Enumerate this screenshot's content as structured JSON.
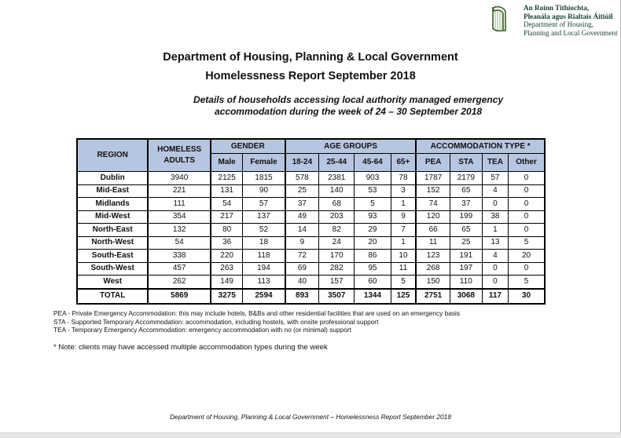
{
  "logo": {
    "line1": "An Roinn Tithíochta,",
    "line2": "Pleanála agus Rialtais Áitiúil",
    "line3": "Department of Housing,",
    "line4": "Planning and Local Government"
  },
  "title": {
    "line1": "Department of Housing, Planning & Local Government",
    "line2": "Homelessness Report September 2018"
  },
  "subtitle": {
    "line1": "Details of households accessing local authority managed emergency",
    "line2": "accommodation during the week of 24 – 30 September 2018"
  },
  "table": {
    "headers": {
      "region": "REGION",
      "homeless_adults": "HOMELESS ADULTS",
      "gender": "GENDER",
      "age_groups": "AGE GROUPS",
      "accommodation_type": "ACCOMMODATION TYPE *",
      "male": "Male",
      "female": "Female",
      "age_18_24": "18-24",
      "age_25_44": "25-44",
      "age_45_64": "45-64",
      "age_65": "65+",
      "pea": "PEA",
      "sta": "STA",
      "tea": "TEA",
      "other": "Other"
    },
    "rows": [
      [
        "Dublin",
        "3940",
        "2125",
        "1815",
        "578",
        "2381",
        "903",
        "78",
        "1787",
        "2179",
        "57",
        "0"
      ],
      [
        "Mid-East",
        "221",
        "131",
        "90",
        "25",
        "140",
        "53",
        "3",
        "152",
        "65",
        "4",
        "0"
      ],
      [
        "Midlands",
        "111",
        "54",
        "57",
        "37",
        "68",
        "5",
        "1",
        "74",
        "37",
        "0",
        "0"
      ],
      [
        "Mid-West",
        "354",
        "217",
        "137",
        "49",
        "203",
        "93",
        "9",
        "120",
        "199",
        "38",
        "0"
      ],
      [
        "North-East",
        "132",
        "80",
        "52",
        "14",
        "82",
        "29",
        "7",
        "66",
        "65",
        "1",
        "0"
      ],
      [
        "North-West",
        "54",
        "36",
        "18",
        "9",
        "24",
        "20",
        "1",
        "11",
        "25",
        "13",
        "5"
      ],
      [
        "South-East",
        "338",
        "220",
        "118",
        "72",
        "170",
        "86",
        "10",
        "123",
        "191",
        "4",
        "20"
      ],
      [
        "South-West",
        "457",
        "263",
        "194",
        "69",
        "282",
        "95",
        "11",
        "268",
        "197",
        "0",
        "0"
      ],
      [
        "West",
        "262",
        "149",
        "113",
        "40",
        "157",
        "60",
        "5",
        "150",
        "110",
        "0",
        "5"
      ]
    ],
    "total": [
      "TOTAL",
      "5869",
      "3275",
      "2594",
      "893",
      "3507",
      "1344",
      "125",
      "2751",
      "3068",
      "117",
      "30"
    ]
  },
  "notes": {
    "pea": "PEA - Private Emergency Accommodation: this may include hotels, B&Bs and other residential facilities that are used on an emergency basis",
    "sta": "STA - Supported Temporary Accommodation: accommodation, including hostels, with onsite professional support",
    "tea": "TEA - Temporary Emergency Accommodation: emergency accommodation with no (or minimal) support",
    "star": "* Note: clients may have accessed multiple accommodation types during the week"
  },
  "footer": "Department of Housing, Planning & Local Government – Homelessness Report September 2018",
  "colors": {
    "header_fill": "#b7c6e0",
    "logo_green": "#1c4035"
  }
}
